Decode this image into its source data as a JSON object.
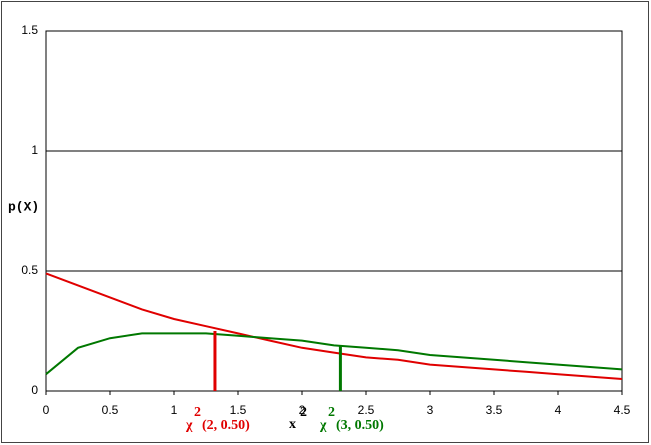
{
  "chart_data": {
    "type": "line",
    "ylabel": "p(X)",
    "x": [
      0,
      0.25,
      0.5,
      0.75,
      1,
      1.25,
      1.5,
      1.75,
      2,
      2.25,
      2.5,
      2.75,
      3,
      3.25,
      3.5,
      3.75,
      4,
      4.25,
      4.5
    ],
    "series": [
      {
        "name": "(2, 0.50)",
        "color": "#e00000",
        "values": [
          0.49,
          0.44,
          0.39,
          0.34,
          0.3,
          0.27,
          0.24,
          0.21,
          0.18,
          0.16,
          0.14,
          0.13,
          0.11,
          0.1,
          0.09,
          0.08,
          0.07,
          0.06,
          0.05
        ]
      },
      {
        "name": "(3, 0.50)",
        "color": "#007800",
        "values": [
          0.07,
          0.18,
          0.22,
          0.24,
          0.24,
          0.24,
          0.23,
          0.22,
          0.21,
          0.19,
          0.18,
          0.17,
          0.15,
          0.14,
          0.13,
          0.12,
          0.11,
          0.1,
          0.09
        ]
      }
    ],
    "markers": [
      {
        "x": 1.32,
        "y": 0.25,
        "color": "#e00000"
      },
      {
        "x": 2.3,
        "y": 0.19,
        "color": "#007800"
      }
    ],
    "symbol": "χ",
    "sup": "2",
    "xlabel": "x",
    "xlim": [
      0,
      4.5
    ],
    "xticks": [
      0,
      0.5,
      1,
      1.5,
      2,
      2.5,
      3,
      3.5,
      4,
      4.5
    ],
    "ylim": [
      0,
      1.5
    ],
    "yticks": [
      0,
      0.5,
      1,
      1.5
    ],
    "grid": true
  }
}
